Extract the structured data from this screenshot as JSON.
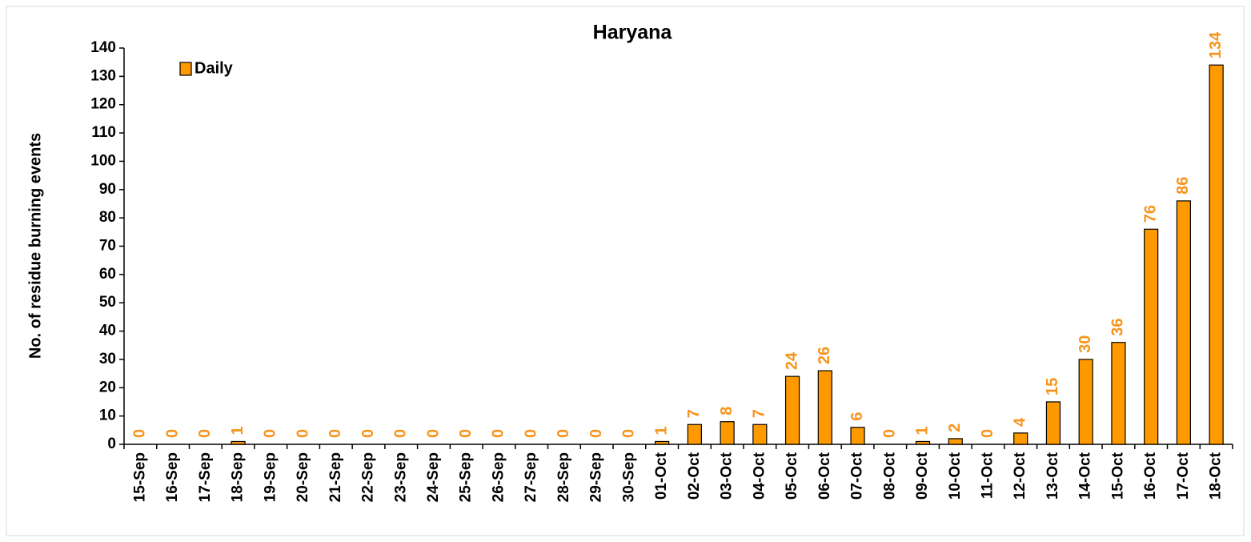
{
  "chart_data": {
    "type": "bar",
    "title": "Haryana",
    "y_label": "No. of residue burning events",
    "categories": [
      "15-Sep",
      "16-Sep",
      "17-Sep",
      "18-Sep",
      "19-Sep",
      "20-Sep",
      "21-Sep",
      "22-Sep",
      "23-Sep",
      "24-Sep",
      "25-Sep",
      "26-Sep",
      "27-Sep",
      "28-Sep",
      "29-Sep",
      "30-Sep",
      "01-Oct",
      "02-Oct",
      "03-Oct",
      "04-Oct",
      "05-Oct",
      "06-Oct",
      "07-Oct",
      "08-Oct",
      "09-Oct",
      "10-Oct",
      "11-Oct",
      "12-Oct",
      "13-Oct",
      "14-Oct",
      "15-Oct",
      "16-Oct",
      "17-Oct",
      "18-Oct"
    ],
    "series": [
      {
        "name": "Daily",
        "color": "#ff9900",
        "label_color": "#f7941d",
        "values": [
          0,
          0,
          0,
          1,
          0,
          0,
          0,
          0,
          0,
          0,
          0,
          0,
          0,
          0,
          0,
          0,
          1,
          7,
          8,
          7,
          24,
          26,
          6,
          0,
          1,
          2,
          0,
          4,
          15,
          30,
          36,
          76,
          86,
          134
        ]
      }
    ],
    "ylim": [
      0,
      140
    ],
    "yticks": [
      0,
      10,
      20,
      30,
      40,
      50,
      60,
      70,
      80,
      90,
      100,
      110,
      120,
      130,
      140
    ],
    "legend": "top-left",
    "grid": false
  }
}
